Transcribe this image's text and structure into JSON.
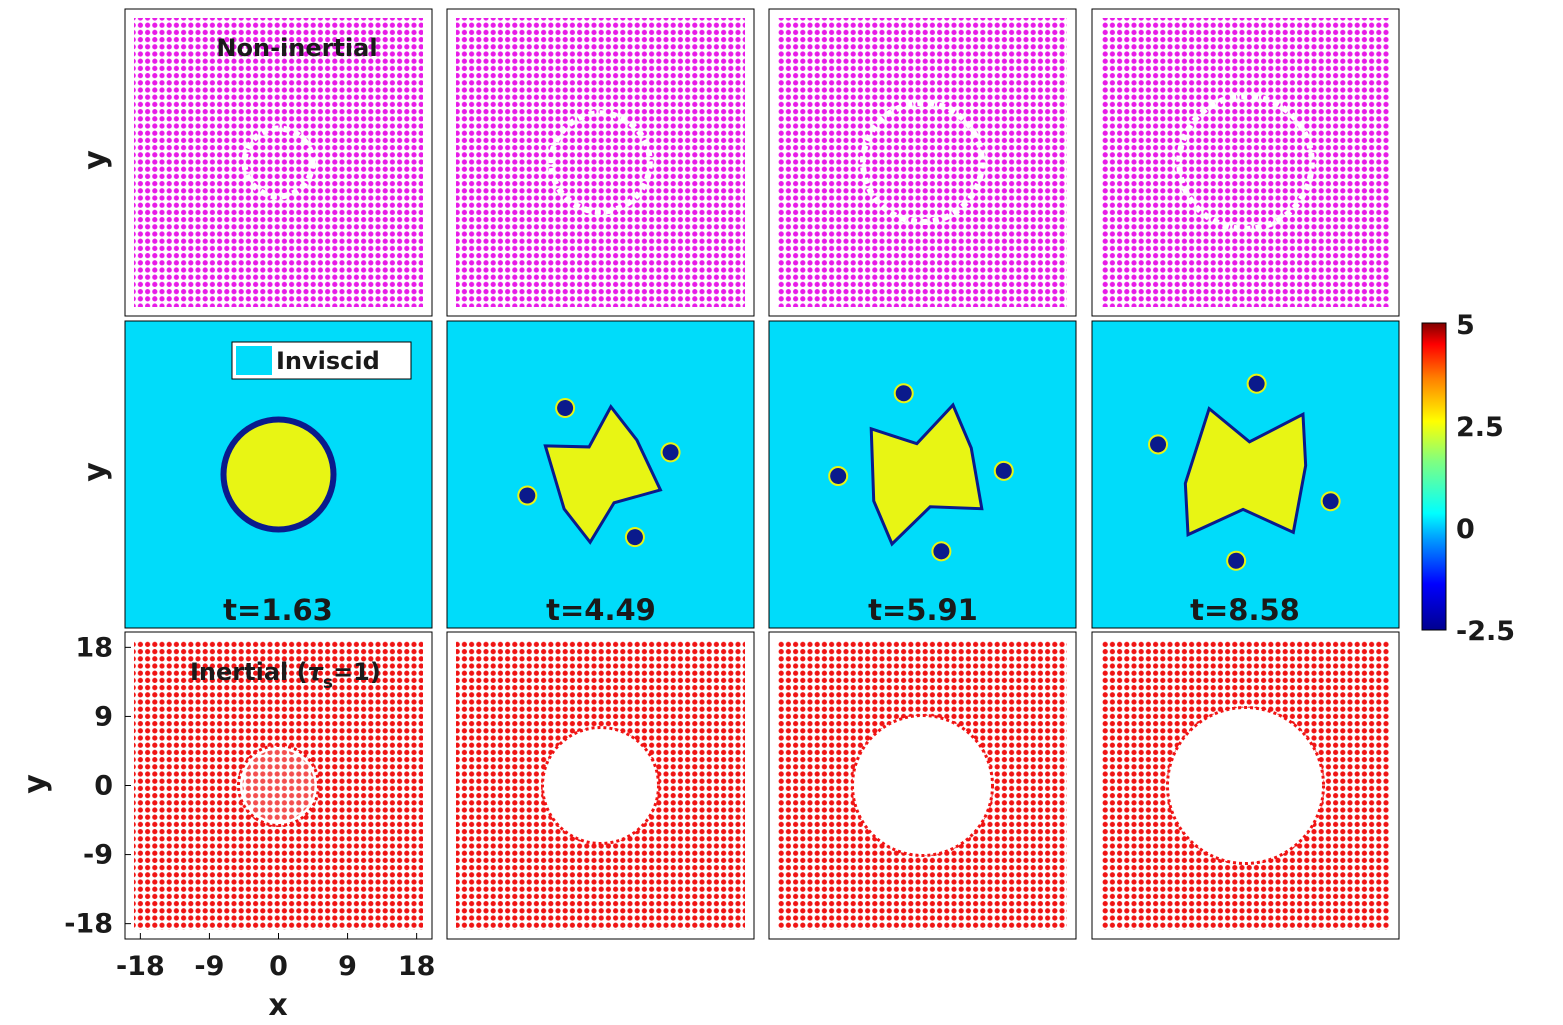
{
  "figure": {
    "rows": [
      {
        "label": "Non-inertial",
        "kind": "particles",
        "color": "#e81be8"
      },
      {
        "label": "Inviscid",
        "kind": "vorticity",
        "background": "#00dcfa"
      },
      {
        "label_prefix": "Inertial (",
        "label_tau": "τ",
        "label_sub": "s",
        "label_suffix": "=1)",
        "kind": "particles",
        "color": "#f01414"
      }
    ],
    "times": [
      "t=1.63",
      "t=4.49",
      "t=5.91",
      "t=8.58"
    ],
    "ylabel": "y",
    "xlabel": "x",
    "x_ticks": [
      "-18",
      "-9",
      "0",
      "9",
      "18"
    ],
    "y_ticks": [
      "18",
      "9",
      "0",
      "-9",
      "-18"
    ]
  },
  "chart_data": {
    "type": "heatmap",
    "description_panels": "3 rows x 4 columns of field snapshots",
    "xlim": [
      -20,
      20
    ],
    "ylim": [
      -20,
      20
    ],
    "x_ticks": [
      -18,
      -9,
      0,
      9,
      18
    ],
    "y_ticks": [
      -18,
      -9,
      0,
      9,
      18
    ],
    "time_labels": [
      "t=1.63",
      "t=4.49",
      "t=5.91",
      "t=8.58"
    ],
    "colorbar": {
      "ticks": [
        "5",
        "2.5",
        "0",
        "-2.5"
      ],
      "tick_values": [
        5,
        2.5,
        0,
        -2.5
      ],
      "range": [
        -2.5,
        5
      ],
      "colormap": "jet"
    },
    "legend": [
      "Non-inertial",
      "Inviscid",
      "Inertial (τs=1)"
    ]
  }
}
